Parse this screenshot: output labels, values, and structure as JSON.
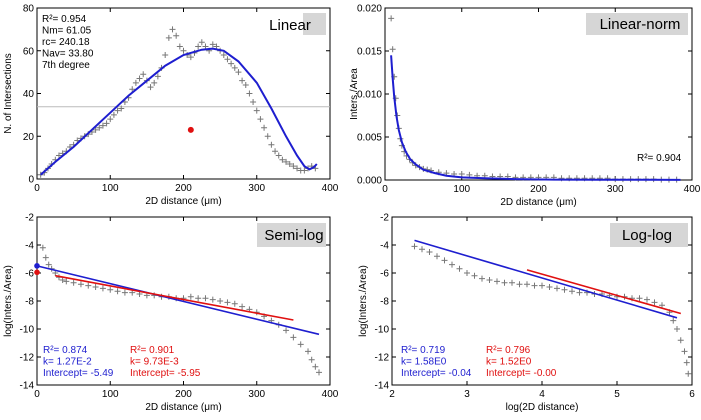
{
  "chart_data": [
    {
      "type": "scatter",
      "title": "Linear",
      "xlabel": "2D distance (μm)",
      "ylabel": "N. of Intersections",
      "xlim": [
        0,
        400
      ],
      "ylim": [
        0,
        80
      ],
      "xticks": [
        "0",
        "100",
        "200",
        "300",
        "400"
      ],
      "yticks": [
        "0",
        "20",
        "40",
        "60",
        "80"
      ],
      "annotations": [
        "R²= 0.954",
        "Nm= 61.05",
        "rc= 240.18",
        "Nav= 33.80",
        "7th degree"
      ],
      "reference_line_y": 33.8,
      "marker_point": [
        210,
        23
      ],
      "scatter_points": [
        [
          5,
          2
        ],
        [
          10,
          3
        ],
        [
          15,
          5
        ],
        [
          20,
          7
        ],
        [
          25,
          9
        ],
        [
          30,
          11
        ],
        [
          35,
          12
        ],
        [
          40,
          13
        ],
        [
          45,
          15
        ],
        [
          50,
          16
        ],
        [
          55,
          18
        ],
        [
          60,
          19
        ],
        [
          65,
          20
        ],
        [
          70,
          21
        ],
        [
          75,
          22
        ],
        [
          80,
          23
        ],
        [
          85,
          24
        ],
        [
          90,
          25
        ],
        [
          95,
          26
        ],
        [
          100,
          28
        ],
        [
          105,
          30
        ],
        [
          110,
          32
        ],
        [
          115,
          33
        ],
        [
          120,
          36
        ],
        [
          125,
          38
        ],
        [
          130,
          42
        ],
        [
          135,
          45
        ],
        [
          140,
          47
        ],
        [
          145,
          49
        ],
        [
          150,
          46
        ],
        [
          155,
          43
        ],
        [
          160,
          45
        ],
        [
          165,
          48
        ],
        [
          170,
          52
        ],
        [
          175,
          58
        ],
        [
          180,
          66
        ],
        [
          185,
          70
        ],
        [
          190,
          67
        ],
        [
          195,
          62
        ],
        [
          200,
          60
        ],
        [
          205,
          58
        ],
        [
          210,
          57
        ],
        [
          215,
          59
        ],
        [
          220,
          62
        ],
        [
          225,
          64
        ],
        [
          230,
          62
        ],
        [
          235,
          60
        ],
        [
          240,
          63
        ],
        [
          245,
          62
        ],
        [
          250,
          60
        ],
        [
          255,
          58
        ],
        [
          260,
          56
        ],
        [
          265,
          54
        ],
        [
          270,
          52
        ],
        [
          275,
          50
        ],
        [
          280,
          46
        ],
        [
          285,
          44
        ],
        [
          290,
          40
        ],
        [
          295,
          36
        ],
        [
          300,
          32
        ],
        [
          305,
          28
        ],
        [
          310,
          24
        ],
        [
          315,
          20
        ],
        [
          320,
          16
        ],
        [
          325,
          13
        ],
        [
          330,
          11
        ],
        [
          335,
          9
        ],
        [
          340,
          8
        ],
        [
          345,
          7
        ],
        [
          350,
          6
        ],
        [
          355,
          5
        ],
        [
          360,
          4
        ],
        [
          365,
          4
        ],
        [
          370,
          5
        ],
        [
          375,
          6
        ],
        [
          380,
          5
        ]
      ],
      "fit_line": [
        [
          5,
          2
        ],
        [
          25,
          8
        ],
        [
          50,
          15
        ],
        [
          75,
          23
        ],
        [
          100,
          31
        ],
        [
          125,
          39
        ],
        [
          150,
          46
        ],
        [
          175,
          53
        ],
        [
          200,
          58
        ],
        [
          225,
          60.5
        ],
        [
          240,
          61
        ],
        [
          255,
          60
        ],
        [
          275,
          55
        ],
        [
          300,
          45
        ],
        [
          320,
          33
        ],
        [
          340,
          20
        ],
        [
          355,
          11
        ],
        [
          365,
          6
        ],
        [
          372,
          4.5
        ],
        [
          378,
          5.5
        ],
        [
          382,
          7
        ]
      ],
      "colors": {
        "points": "#777777",
        "fit": "#1e1ecf",
        "marker": "#e01010",
        "reference": "#bbbbbb"
      }
    },
    {
      "type": "scatter",
      "title": "Linear-norm",
      "xlabel": "2D distance (μm)",
      "ylabel": "Inters./Area",
      "xlim": [
        0,
        400
      ],
      "ylim": [
        0,
        0.02
      ],
      "xticks": [
        "0",
        "100",
        "200",
        "300",
        "400"
      ],
      "yticks": [
        "0.000",
        "0.005",
        "0.010",
        "0.015",
        "0.020"
      ],
      "annotations": [
        "R²= 0.904"
      ],
      "scatter_points": [
        [
          8,
          0.0188
        ],
        [
          10,
          0.0152
        ],
        [
          12,
          0.012
        ],
        [
          14,
          0.0095
        ],
        [
          16,
          0.0075
        ],
        [
          18,
          0.006
        ],
        [
          20,
          0.0048
        ],
        [
          22,
          0.004
        ],
        [
          25,
          0.0033
        ],
        [
          28,
          0.0028
        ],
        [
          32,
          0.0024
        ],
        [
          36,
          0.002
        ],
        [
          40,
          0.0017
        ],
        [
          45,
          0.0015
        ],
        [
          50,
          0.0013
        ],
        [
          55,
          0.0012
        ],
        [
          60,
          0.0011
        ],
        [
          70,
          0.0009
        ],
        [
          80,
          0.0008
        ],
        [
          90,
          0.0007
        ],
        [
          100,
          0.0007
        ],
        [
          110,
          0.0006
        ],
        [
          120,
          0.0005
        ],
        [
          130,
          0.0005
        ],
        [
          140,
          0.0004
        ],
        [
          150,
          0.0004
        ],
        [
          160,
          0.0004
        ],
        [
          170,
          0.0003
        ],
        [
          180,
          0.0003
        ],
        [
          190,
          0.0003
        ],
        [
          200,
          0.0003
        ],
        [
          210,
          0.0003
        ],
        [
          220,
          0.0003
        ],
        [
          230,
          0.0002
        ],
        [
          240,
          0.0002
        ],
        [
          250,
          0.0002
        ],
        [
          260,
          0.0002
        ],
        [
          270,
          0.0002
        ],
        [
          280,
          0.0002
        ],
        [
          290,
          0.0002
        ],
        [
          300,
          0.0001
        ],
        [
          310,
          0.0001
        ],
        [
          320,
          0.0001
        ],
        [
          330,
          0.0001
        ],
        [
          340,
          0.0001
        ],
        [
          350,
          0.0001
        ],
        [
          360,
          5e-05
        ],
        [
          370,
          5e-05
        ],
        [
          380,
          5e-05
        ]
      ],
      "fit_line": [
        [
          8,
          0.0145
        ],
        [
          10,
          0.0118
        ],
        [
          12,
          0.0097
        ],
        [
          15,
          0.0074
        ],
        [
          18,
          0.0058
        ],
        [
          22,
          0.0044
        ],
        [
          27,
          0.0033
        ],
        [
          33,
          0.0024
        ],
        [
          40,
          0.0018
        ],
        [
          50,
          0.0012
        ],
        [
          65,
          0.0008
        ],
        [
          80,
          0.0005
        ],
        [
          100,
          0.0003
        ],
        [
          130,
          0.0002
        ],
        [
          170,
          0.0001
        ],
        [
          220,
          5e-05
        ],
        [
          280,
          3e-05
        ],
        [
          340,
          2e-05
        ],
        [
          385,
          1e-05
        ]
      ],
      "colors": {
        "points": "#777777",
        "fit": "#1e1ecf"
      }
    },
    {
      "type": "scatter",
      "title": "Semi-log",
      "xlabel": "2D distance (μm)",
      "ylabel": "log(Inters./Area)",
      "xlim": [
        0,
        400
      ],
      "ylim": [
        -14,
        -2
      ],
      "xticks": [
        "0",
        "100",
        "200",
        "300",
        "400"
      ],
      "yticks": [
        "-14",
        "-12",
        "-10",
        "-8",
        "-6",
        "-4",
        "-2"
      ],
      "annotations_blue": [
        "R²= 0.874",
        "k= 1.27E-2",
        "Intercept= -5.49"
      ],
      "annotations_red": [
        "R²= 0.901",
        "k= 9.73E-3",
        "Intercept= -5.95"
      ],
      "markers": [
        [
          0,
          -5.49
        ],
        [
          0,
          -5.95
        ]
      ],
      "scatter_points": [
        [
          8,
          -4.2
        ],
        [
          12,
          -4.9
        ],
        [
          16,
          -5.4
        ],
        [
          20,
          -5.7
        ],
        [
          25,
          -6.0
        ],
        [
          30,
          -6.3
        ],
        [
          35,
          -6.5
        ],
        [
          40,
          -6.6
        ],
        [
          50,
          -6.7
        ],
        [
          60,
          -6.8
        ],
        [
          70,
          -6.9
        ],
        [
          80,
          -7.0
        ],
        [
          90,
          -7.1
        ],
        [
          100,
          -7.2
        ],
        [
          110,
          -7.3
        ],
        [
          120,
          -7.4
        ],
        [
          130,
          -7.4
        ],
        [
          140,
          -7.5
        ],
        [
          150,
          -7.6
        ],
        [
          160,
          -7.6
        ],
        [
          170,
          -7.7
        ],
        [
          180,
          -7.7
        ],
        [
          190,
          -7.8
        ],
        [
          200,
          -7.8
        ],
        [
          210,
          -7.7
        ],
        [
          220,
          -7.8
        ],
        [
          230,
          -7.8
        ],
        [
          240,
          -7.9
        ],
        [
          250,
          -8.0
        ],
        [
          260,
          -8.1
        ],
        [
          270,
          -8.2
        ],
        [
          280,
          -8.4
        ],
        [
          290,
          -8.6
        ],
        [
          300,
          -8.8
        ],
        [
          310,
          -9.1
        ],
        [
          320,
          -9.4
        ],
        [
          330,
          -9.7
        ],
        [
          340,
          -10.1
        ],
        [
          350,
          -10.6
        ],
        [
          360,
          -11.1
        ],
        [
          370,
          -11.6
        ],
        [
          375,
          -12.2
        ],
        [
          380,
          -12.7
        ],
        [
          385,
          -13.1
        ]
      ],
      "fit_line_blue": [
        [
          0,
          -5.49
        ],
        [
          385,
          -10.38
        ]
      ],
      "fit_line_red": [
        [
          25,
          -6.19
        ],
        [
          350,
          -9.36
        ]
      ],
      "colors": {
        "points": "#777777",
        "blue": "#1e1ecf",
        "red": "#e01010"
      }
    },
    {
      "type": "scatter",
      "title": "Log-log",
      "xlabel": "log(2D distance)",
      "ylabel": "log(Inters./Area)",
      "xlim": [
        2,
        6
      ],
      "ylim": [
        -14,
        -2
      ],
      "xticks": [
        "2",
        "3",
        "4",
        "5",
        "6"
      ],
      "yticks": [
        "-14",
        "-12",
        "-10",
        "-8",
        "-6",
        "-4",
        "-2"
      ],
      "annotations_blue": [
        "R²= 0.719",
        "k= 1.58E0",
        "Intercept= -0.04"
      ],
      "annotations_red": [
        "R²= 0.796",
        "k= 1.52E0",
        "Intercept= -0.00"
      ],
      "scatter_points": [
        [
          2.3,
          -4.1
        ],
        [
          2.4,
          -4.3
        ],
        [
          2.5,
          -4.5
        ],
        [
          2.6,
          -4.8
        ],
        [
          2.7,
          -5.1
        ],
        [
          2.8,
          -5.4
        ],
        [
          2.9,
          -5.7
        ],
        [
          3.0,
          -6.0
        ],
        [
          3.1,
          -6.2
        ],
        [
          3.2,
          -6.4
        ],
        [
          3.3,
          -6.5
        ],
        [
          3.4,
          -6.6
        ],
        [
          3.5,
          -6.7
        ],
        [
          3.6,
          -6.7
        ],
        [
          3.7,
          -6.8
        ],
        [
          3.8,
          -6.8
        ],
        [
          3.9,
          -6.9
        ],
        [
          4.0,
          -6.9
        ],
        [
          4.1,
          -7.0
        ],
        [
          4.2,
          -7.1
        ],
        [
          4.3,
          -7.2
        ],
        [
          4.4,
          -7.3
        ],
        [
          4.5,
          -7.4
        ],
        [
          4.6,
          -7.4
        ],
        [
          4.7,
          -7.5
        ],
        [
          4.8,
          -7.5
        ],
        [
          4.9,
          -7.6
        ],
        [
          5.0,
          -7.7
        ],
        [
          5.1,
          -7.7
        ],
        [
          5.2,
          -7.8
        ],
        [
          5.3,
          -7.8
        ],
        [
          5.4,
          -7.9
        ],
        [
          5.5,
          -8.1
        ],
        [
          5.6,
          -8.3
        ],
        [
          5.7,
          -8.8
        ],
        [
          5.75,
          -9.4
        ],
        [
          5.8,
          -10.0
        ],
        [
          5.85,
          -10.8
        ],
        [
          5.9,
          -11.6
        ],
        [
          5.93,
          -12.4
        ],
        [
          5.95,
          -13.2
        ]
      ],
      "fit_line_blue": [
        [
          2.3,
          -3.67
        ],
        [
          5.8,
          -9.2
        ]
      ],
      "fit_line_red": [
        [
          3.8,
          -5.78
        ],
        [
          5.85,
          -8.89
        ]
      ],
      "colors": {
        "points": "#777777",
        "blue": "#1e1ecf",
        "red": "#e01010"
      }
    }
  ]
}
